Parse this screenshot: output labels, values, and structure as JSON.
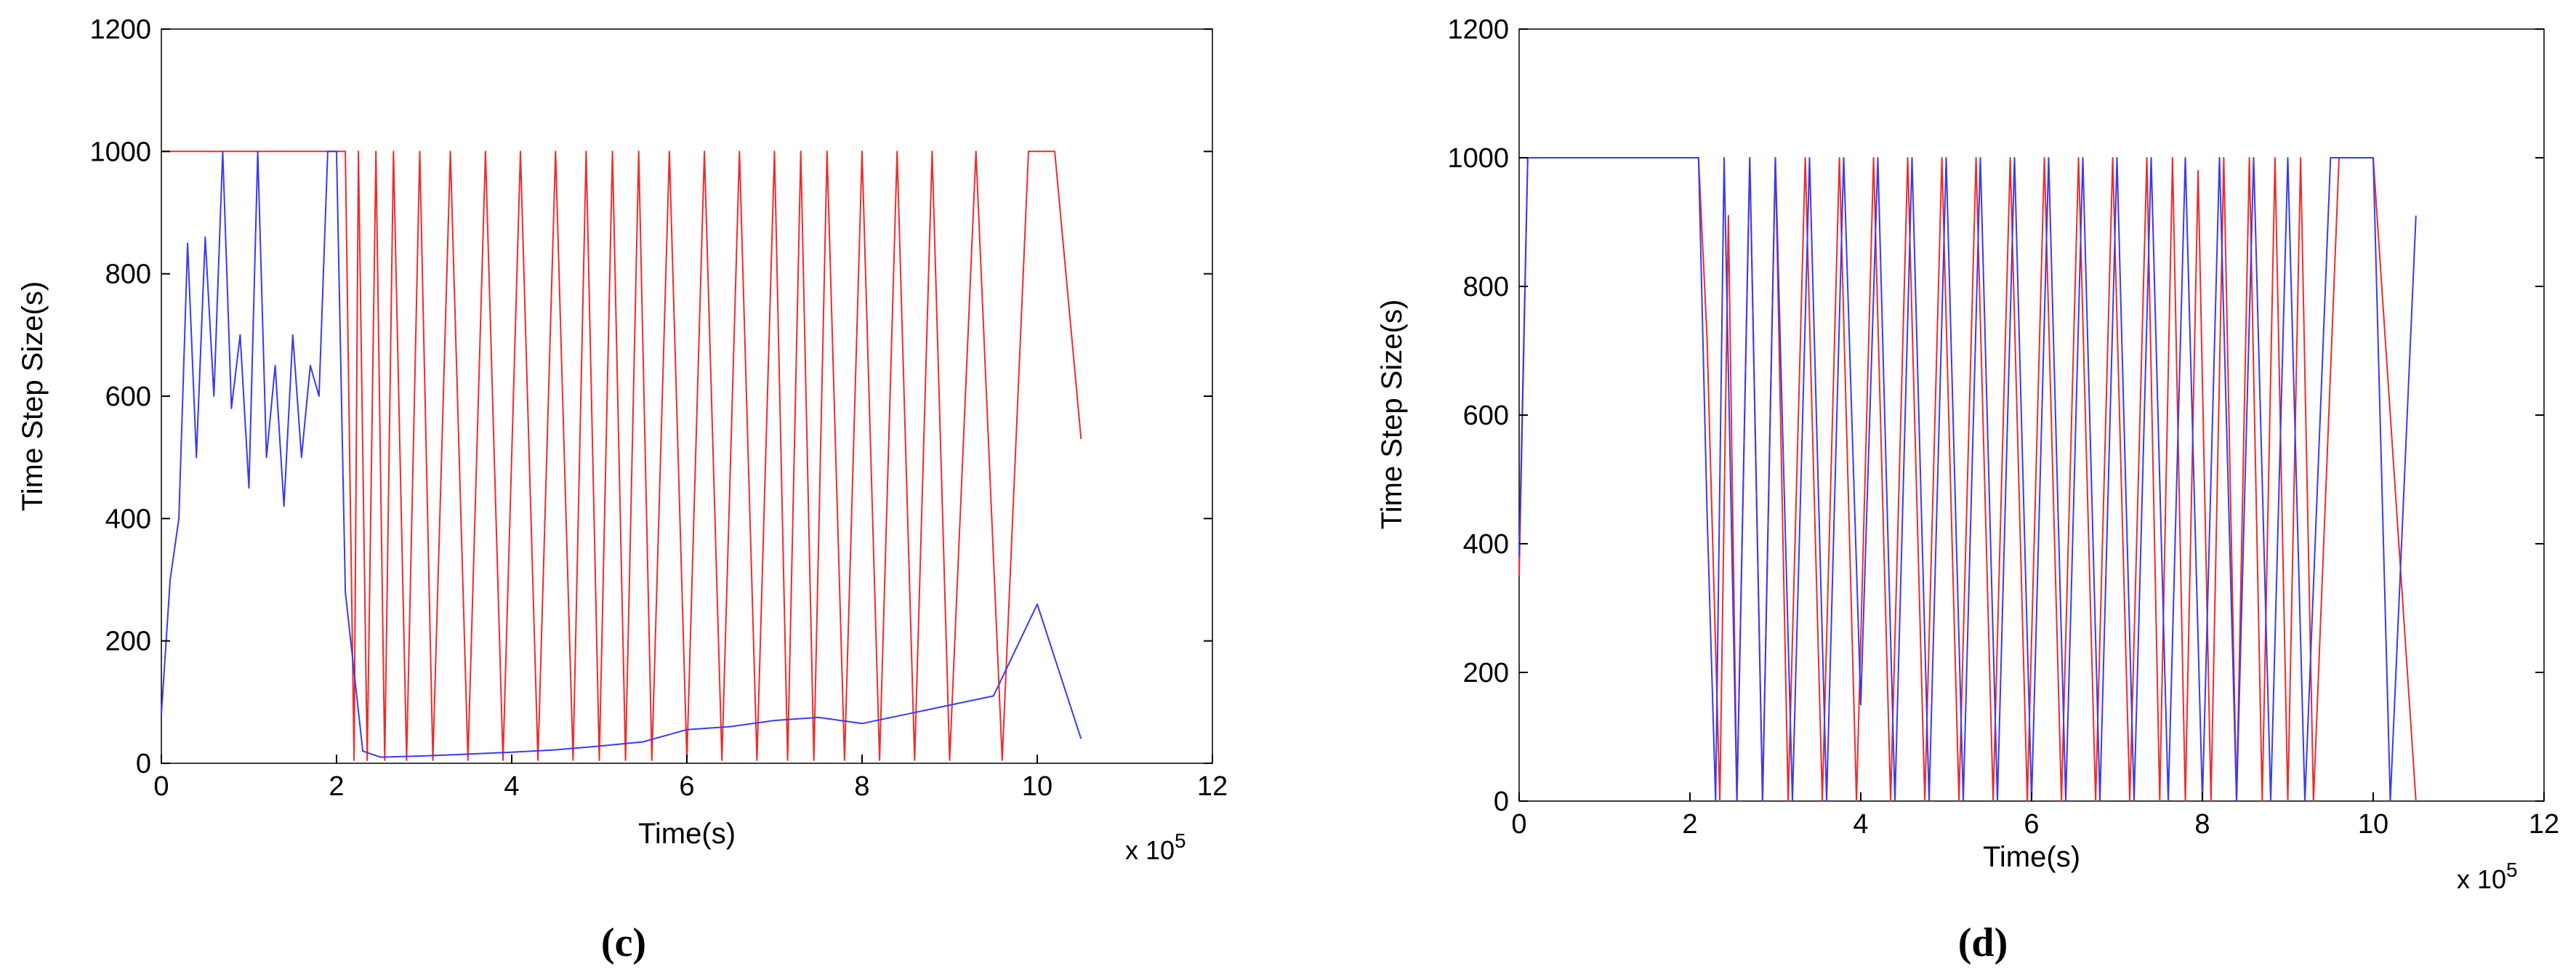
{
  "chart_data": [
    {
      "type": "line",
      "panel_label": "c",
      "xlabel": "Time(s)",
      "ylabel": "Time Step Size(s)",
      "x_multiplier": "x 10",
      "x_multiplier_exp": "5",
      "xlim": [
        0,
        12
      ],
      "ylim": [
        0,
        1200
      ],
      "xticks": [
        0,
        2,
        4,
        6,
        8,
        10,
        12
      ],
      "yticks": [
        0,
        200,
        400,
        600,
        800,
        1000,
        1200
      ],
      "series": [
        {
          "name": "red",
          "color": "#ef2b2b",
          "description": "step size toggling between ~1000 s and ~0 s",
          "x": [
            0,
            0.05,
            0.1,
            2.1,
            2.15,
            2.2,
            2.25,
            2.35,
            2.45,
            2.55,
            2.65,
            2.8,
            2.95,
            3.1,
            3.3,
            3.5,
            3.7,
            3.9,
            4.1,
            4.3,
            4.5,
            4.7,
            4.85,
            5.0,
            5.15,
            5.3,
            5.45,
            5.6,
            5.8,
            6.0,
            6.2,
            6.4,
            6.6,
            6.8,
            7.0,
            7.15,
            7.3,
            7.45,
            7.6,
            7.8,
            8.0,
            8.2,
            8.4,
            8.6,
            8.8,
            9.0,
            9.3,
            9.6,
            9.9,
            10.2,
            10.5
          ],
          "y": [
            1000,
            1000,
            1000,
            1000,
            500,
            5,
            1000,
            5,
            1000,
            5,
            1000,
            5,
            1000,
            5,
            1000,
            5,
            1000,
            5,
            1000,
            5,
            1000,
            5,
            1000,
            5,
            1000,
            5,
            1000,
            5,
            1000,
            5,
            1000,
            5,
            1000,
            5,
            1000,
            5,
            1000,
            5,
            1000,
            5,
            1000,
            5,
            1000,
            5,
            1000,
            5,
            1000,
            5,
            1000,
            1000,
            530
          ]
        },
        {
          "name": "blue",
          "color": "#3a3af0",
          "description": "noisy step size: 300-1000 s before 2.1e5 s, near zero growing to ~100 s afterwards",
          "x": [
            0,
            0.1,
            0.2,
            0.3,
            0.4,
            0.5,
            0.6,
            0.7,
            0.8,
            0.9,
            1.0,
            1.1,
            1.2,
            1.3,
            1.4,
            1.5,
            1.6,
            1.7,
            1.8,
            1.9,
            2.0,
            2.1,
            2.2,
            2.3,
            2.5,
            3.0,
            3.5,
            4.0,
            4.5,
            5.0,
            5.5,
            6.0,
            6.5,
            7.0,
            7.5,
            8.0,
            8.5,
            9.0,
            9.5,
            10.0,
            10.5
          ],
          "y": [
            80,
            300,
            400,
            850,
            500,
            860,
            600,
            1000,
            580,
            700,
            450,
            1000,
            500,
            650,
            420,
            700,
            500,
            650,
            600,
            1000,
            1000,
            280,
            150,
            20,
            10,
            12,
            15,
            18,
            22,
            28,
            35,
            55,
            60,
            70,
            75,
            65,
            80,
            95,
            110,
            260,
            40
          ]
        }
      ]
    },
    {
      "type": "line",
      "panel_label": "d",
      "xlabel": "Time(s)",
      "ylabel": "Time Step Size(s)",
      "x_multiplier": "x 10",
      "x_multiplier_exp": "5",
      "xlim": [
        0,
        12
      ],
      "ylim": [
        0,
        1200
      ],
      "xticks": [
        0,
        2,
        4,
        6,
        8,
        10,
        12
      ],
      "yticks": [
        0,
        200,
        400,
        600,
        800,
        1000,
        1200
      ],
      "series": [
        {
          "name": "red",
          "color": "#ef2b2b",
          "description": "step size oscillating between ~0 s and ~1000 s",
          "x": [
            0,
            0.1,
            2.1,
            2.2,
            2.35,
            2.45,
            2.55,
            2.7,
            2.85,
            3.0,
            3.15,
            3.35,
            3.55,
            3.75,
            3.95,
            4.15,
            4.35,
            4.55,
            4.75,
            4.95,
            5.15,
            5.35,
            5.55,
            5.75,
            5.95,
            6.15,
            6.35,
            6.55,
            6.75,
            6.95,
            7.15,
            7.35,
            7.5,
            7.65,
            7.8,
            7.95,
            8.1,
            8.25,
            8.4,
            8.55,
            8.7,
            8.85,
            9.0,
            9.15,
            9.3,
            9.6,
            10.0,
            10.5
          ],
          "y": [
            350,
            1000,
            1000,
            720,
            0,
            910,
            0,
            1000,
            0,
            1000,
            0,
            1000,
            0,
            1000,
            0,
            1000,
            0,
            1000,
            0,
            1000,
            0,
            1000,
            0,
            1000,
            0,
            1000,
            0,
            1000,
            0,
            1000,
            0,
            1000,
            0,
            1000,
            0,
            980,
            0,
            1000,
            0,
            1000,
            0,
            1000,
            0,
            1000,
            0,
            1000,
            1000,
            0
          ]
        },
        {
          "name": "blue",
          "color": "#3a3af0",
          "description": "step size oscillating between ~0 s and ~1000 s",
          "x": [
            0,
            0.1,
            2.1,
            2.2,
            2.3,
            2.4,
            2.55,
            2.7,
            2.85,
            3.0,
            3.2,
            3.4,
            3.6,
            3.8,
            4.0,
            4.2,
            4.4,
            4.6,
            4.8,
            5.0,
            5.2,
            5.4,
            5.6,
            5.8,
            6.0,
            6.2,
            6.4,
            6.6,
            6.8,
            7.0,
            7.2,
            7.4,
            7.6,
            7.8,
            8.0,
            8.2,
            8.4,
            8.6,
            8.8,
            9.0,
            9.2,
            9.5,
            10.0,
            10.2,
            10.5
          ],
          "y": [
            380,
            1000,
            1000,
            450,
            0,
            1000,
            0,
            1000,
            0,
            1000,
            0,
            1000,
            0,
            1000,
            150,
            1000,
            0,
            1000,
            0,
            1000,
            0,
            1000,
            0,
            1000,
            0,
            1000,
            0,
            1000,
            0,
            1000,
            0,
            1000,
            0,
            1000,
            0,
            1000,
            0,
            1000,
            0,
            1000,
            0,
            1000,
            1000,
            0,
            910
          ]
        }
      ]
    }
  ]
}
